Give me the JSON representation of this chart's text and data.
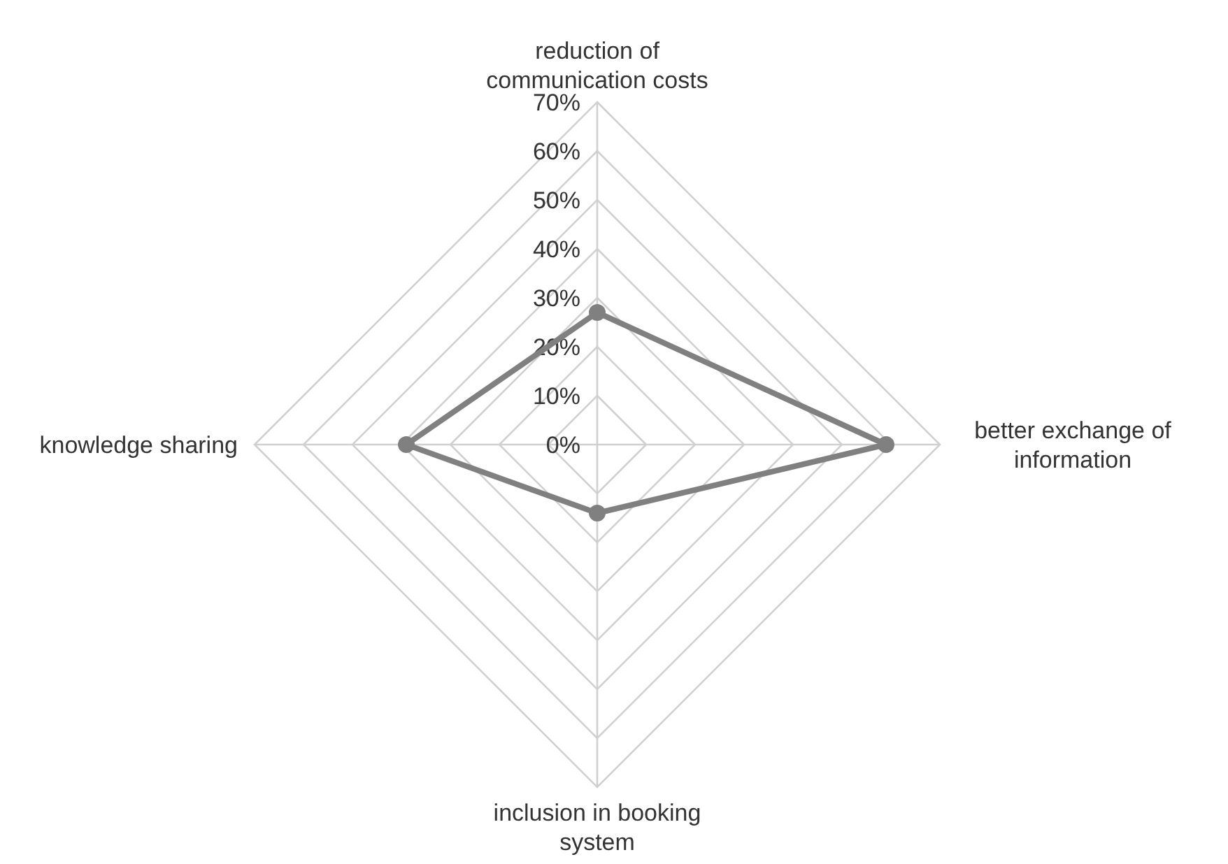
{
  "chart_data": {
    "type": "radar",
    "categories": [
      "reduction of communication costs",
      "better exchange of information",
      "inclusion in booking system",
      "knowledge sharing"
    ],
    "series": [
      {
        "color": "#808080",
        "values": [
          27,
          59,
          14,
          39
        ]
      }
    ],
    "ylim": [
      0,
      70
    ],
    "yticks": [
      {
        "value": 0,
        "label": "0%"
      },
      {
        "value": 10,
        "label": "10%"
      },
      {
        "value": 20,
        "label": "20%"
      },
      {
        "value": 30,
        "label": "30%"
      },
      {
        "value": 40,
        "label": "40%"
      },
      {
        "value": 50,
        "label": "50%"
      },
      {
        "value": 60,
        "label": "60%"
      },
      {
        "value": 70,
        "label": "70%"
      }
    ],
    "grid": true,
    "marker": "circle",
    "line_style": "solid"
  }
}
